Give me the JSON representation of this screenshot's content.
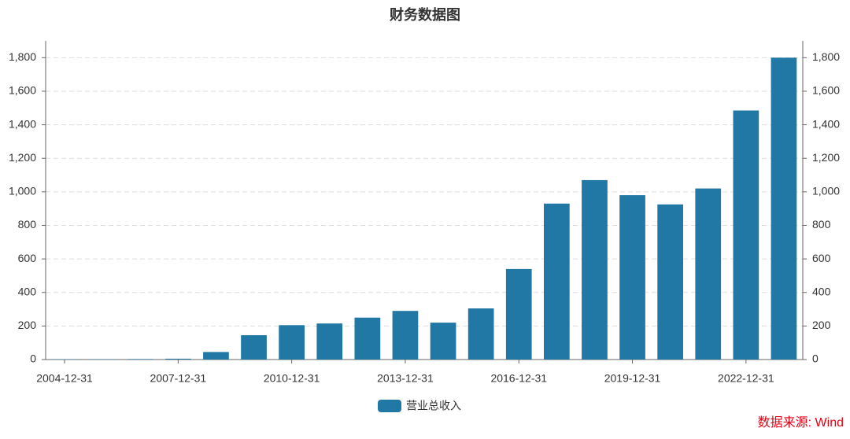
{
  "chart_data": {
    "type": "bar",
    "title": "财务数据图",
    "categories": [
      "2004-12-31",
      null,
      null,
      "2007-12-31",
      null,
      null,
      "2010-12-31",
      null,
      null,
      "2013-12-31",
      null,
      null,
      "2016-12-31",
      null,
      null,
      "2019-12-31",
      null,
      null,
      "2022-12-31",
      null
    ],
    "series": [
      {
        "name": "营业总收入",
        "color": "#2278a5",
        "values": [
          2,
          2,
          3,
          5,
          45,
          145,
          205,
          215,
          250,
          290,
          220,
          305,
          540,
          930,
          1070,
          980,
          925,
          1020,
          1485,
          1800
        ]
      }
    ],
    "ylim": [
      0,
      1900
    ],
    "yticks": [
      0,
      200,
      400,
      600,
      800,
      {
        "value": 1000,
        "label": "1,000"
      },
      {
        "value": 1200,
        "label": "1,200"
      },
      {
        "value": 1400,
        "label": "1,400"
      },
      {
        "value": 1600,
        "label": "1,600"
      },
      {
        "value": 1800,
        "label": "1,800"
      }
    ],
    "y2lim": [
      0,
      1900
    ],
    "y2ticks": [
      0,
      200,
      400,
      600,
      800,
      {
        "value": 1000,
        "label": "1,000"
      },
      {
        "value": 1200,
        "label": "1,200"
      },
      {
        "value": 1400,
        "label": "1,400"
      },
      {
        "value": 1600,
        "label": "1,600"
      },
      {
        "value": 1800,
        "label": "1,800"
      }
    ],
    "grid": true,
    "legend": "bottom",
    "source": "数据来源: Wind"
  }
}
